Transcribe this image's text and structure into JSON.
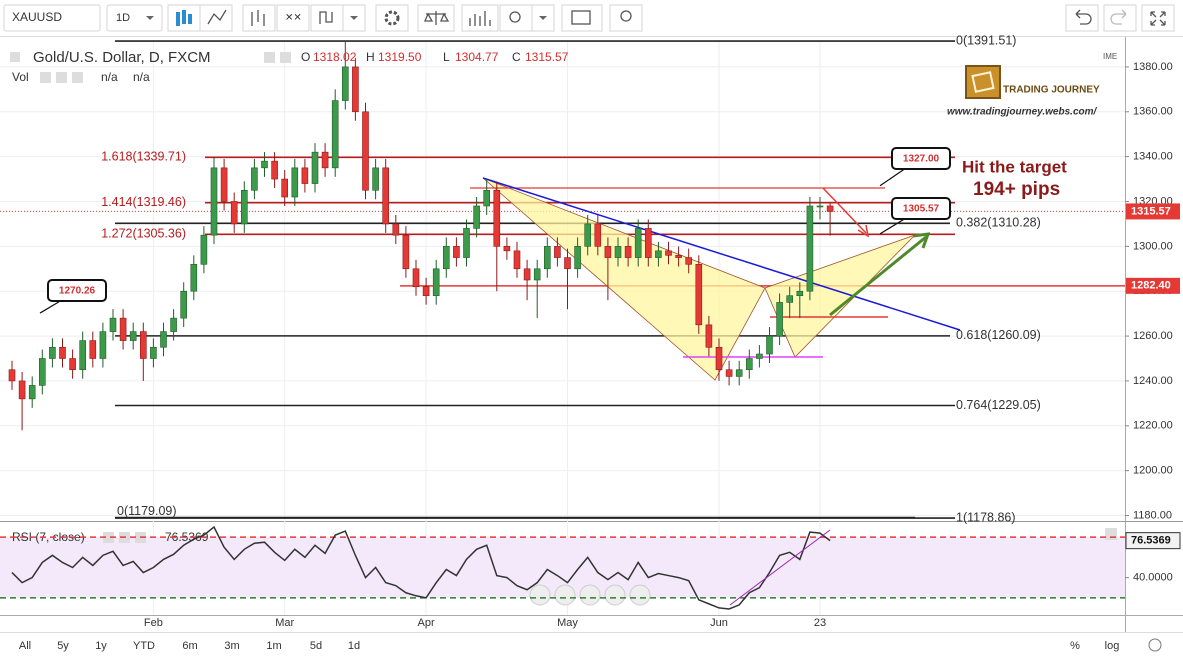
{
  "toolbar": {
    "symbol": "XAUUSD",
    "interval": "1D"
  },
  "legend": {
    "title": "Gold/U.S. Dollar, D, FXCM",
    "o": "O",
    "h": "H",
    "l": "L",
    "c": "C",
    "vol": "Vol",
    "vol_values": [
      "n/a",
      "n/a"
    ]
  },
  "annotations": {
    "line1": "Hit the target",
    "line2": "194+ pips"
  },
  "watermark": {
    "brand": "TRADING JOURNEY",
    "url": "www.tradingjourney.webs.com/",
    "ime": "IME"
  },
  "range_buttons": [
    "All",
    "5y",
    "1y",
    "YTD",
    "6m",
    "3m",
    "1m",
    "5d",
    "1d"
  ],
  "right_buttons": [
    "%",
    "log"
  ],
  "chart_data": {
    "type": "candlestick",
    "ylim": [
      1178,
      1392
    ],
    "yticks": [
      {
        "value": 1180,
        "label": "1180.00"
      },
      {
        "value": 1200,
        "label": "1200.00"
      },
      {
        "value": 1220,
        "label": "1220.00"
      },
      {
        "value": 1240,
        "label": "1240.00"
      },
      {
        "value": 1260,
        "label": "1260.00"
      },
      {
        "value": 1280,
        "label": "1280.00"
      },
      {
        "value": 1300,
        "label": "1300.00"
      },
      {
        "value": 1320,
        "label": "1320.00"
      },
      {
        "value": 1340,
        "label": "1340.00"
      },
      {
        "value": 1360,
        "label": "1360.00"
      },
      {
        "value": 1380,
        "label": "1380.00"
      }
    ],
    "grid": true,
    "up_color": "#3d9a4b",
    "down_color": "#e53935",
    "categories": [
      null,
      null,
      null,
      null,
      null,
      null,
      null,
      null,
      null,
      null,
      null,
      null,
      null,
      null,
      "Feb",
      null,
      null,
      null,
      null,
      null,
      null,
      null,
      null,
      null,
      null,
      null,
      null,
      "Mar",
      null,
      null,
      null,
      null,
      null,
      null,
      null,
      null,
      null,
      null,
      null,
      null,
      null,
      "Apr",
      null,
      null,
      null,
      null,
      null,
      null,
      null,
      null,
      null,
      null,
      null,
      null,
      null,
      "May",
      null,
      null,
      null,
      null,
      null,
      null,
      null,
      null,
      null,
      null,
      null,
      null,
      null,
      null,
      "Jun",
      null,
      null,
      null,
      null,
      null,
      null,
      null,
      null,
      null,
      "23",
      null
    ],
    "open": [
      1245,
      1240,
      1232,
      1238,
      1250,
      1255,
      1250,
      1245,
      1258,
      1250,
      1262,
      1268,
      1258,
      1262,
      1250,
      1255,
      1262,
      1268,
      1280,
      1292,
      1305,
      1335,
      1320,
      1310,
      1325,
      1335,
      1338,
      1330,
      1322,
      1335,
      1328,
      1342,
      1335,
      1365,
      1380,
      1360,
      1325,
      1335,
      1310,
      1305,
      1290,
      1282,
      1278,
      1290,
      1300,
      1295,
      1308,
      1318,
      1325,
      1300,
      1298,
      1290,
      1285,
      1290,
      1300,
      1295,
      1290,
      1300,
      1310,
      1300,
      1295,
      1300,
      1295,
      1308,
      1295,
      1298,
      1296,
      1295,
      1292,
      1265,
      1255,
      1245,
      1242,
      1245,
      1250,
      1252,
      1260,
      1275,
      1278,
      1280,
      1318,
      1318.02
    ],
    "high": [
      1249,
      1244,
      1242,
      1254,
      1259,
      1259,
      1254,
      1262,
      1262,
      1266,
      1272,
      1272,
      1266,
      1266,
      1259,
      1266,
      1272,
      1284,
      1296,
      1309,
      1340,
      1339,
      1324,
      1329,
      1339,
      1342,
      1342,
      1334,
      1339,
      1339,
      1346,
      1346,
      1370,
      1391.5,
      1384,
      1364,
      1339,
      1339,
      1314,
      1309,
      1294,
      1286,
      1294,
      1304,
      1304,
      1312,
      1322,
      1330,
      1329,
      1304,
      1302,
      1294,
      1294,
      1304,
      1304,
      1299,
      1304,
      1314,
      1314,
      1304,
      1304,
      1304,
      1312,
      1312,
      1302,
      1302,
      1300,
      1299,
      1296,
      1269,
      1259,
      1249,
      1249,
      1254,
      1256,
      1264,
      1279,
      1282,
      1284,
      1322,
      1322,
      1319.5
    ],
    "low": [
      1236,
      1218,
      1228,
      1234,
      1246,
      1246,
      1241,
      1241,
      1246,
      1246,
      1258,
      1254,
      1254,
      1240,
      1246,
      1251,
      1258,
      1264,
      1276,
      1288,
      1301,
      1316,
      1306,
      1306,
      1321,
      1331,
      1326,
      1318,
      1318,
      1324,
      1324,
      1331,
      1331,
      1361,
      1356,
      1321,
      1321,
      1306,
      1301,
      1286,
      1278,
      1274,
      1274,
      1286,
      1291,
      1291,
      1304,
      1314,
      1280,
      1294,
      1286,
      1276,
      1268,
      1286,
      1291,
      1272,
      1286,
      1296,
      1296,
      1276,
      1291,
      1291,
      1291,
      1291,
      1291,
      1292,
      1291,
      1288,
      1261,
      1251,
      1240,
      1238,
      1238,
      1241,
      1246,
      1248,
      1256,
      1268,
      1268,
      1276,
      1312,
      1304.77
    ],
    "close": [
      1240,
      1232,
      1238,
      1250,
      1255,
      1250,
      1245,
      1258,
      1250,
      1262,
      1268,
      1258,
      1262,
      1250,
      1255,
      1262,
      1268,
      1280,
      1292,
      1305,
      1335,
      1320,
      1310,
      1325,
      1335,
      1338,
      1330,
      1322,
      1335,
      1328,
      1342,
      1335,
      1365,
      1380,
      1360,
      1325,
      1335,
      1310,
      1305,
      1290,
      1282,
      1278,
      1290,
      1300,
      1295,
      1308,
      1318,
      1325,
      1300,
      1298,
      1290,
      1285,
      1290,
      1300,
      1295,
      1290,
      1300,
      1310,
      1300,
      1295,
      1300,
      1295,
      1308,
      1295,
      1298,
      1296,
      1295,
      1292,
      1265,
      1255,
      1245,
      1242,
      1245,
      1250,
      1252,
      1260,
      1275,
      1278,
      1280,
      1318,
      1318,
      1315.57
    ],
    "ohlc_labels": {
      "open": "1318.02",
      "high": "1319.50",
      "low": "1304.77",
      "close": "1315.57"
    },
    "levels": [
      {
        "label": "0(1391.51)",
        "value": 1391.51,
        "color": "#222222"
      },
      {
        "label": "1.618(1339.71)",
        "value": 1339.71,
        "color": "#b71c1c"
      },
      {
        "label": "1.414(1319.46)",
        "value": 1319.46,
        "color": "#b71c1c"
      },
      {
        "label": "1.272(1305.36)",
        "value": 1305.36,
        "color": "#b71c1c"
      },
      {
        "label": "0.382(1310.28)",
        "value": 1310.28,
        "color": "#222222"
      },
      {
        "label": "0.618(1260.09)",
        "value": 1260.09,
        "color": "#222222"
      },
      {
        "label": "0.764(1229.05)",
        "value": 1229.05,
        "color": "#222222"
      },
      {
        "label": "0(1179.09)",
        "value": 1179.09,
        "color": "#222222"
      },
      {
        "label": "1(1178.86)",
        "value": 1178.86,
        "color": "#222222"
      }
    ],
    "support": {
      "value": 1282.4,
      "label": "1282.40",
      "color": "#e53935"
    },
    "callouts": [
      {
        "label": "1270.26",
        "value": 1270.26
      },
      {
        "label": "1327.00",
        "value": 1327
      },
      {
        "label": "1305.57",
        "value": 1305.57
      }
    ],
    "rsi": {
      "title": "RSI (7, close)",
      "ylim": [
        3,
        94
      ],
      "yticks": [
        {
          "value": 40,
          "label": "40.0000"
        }
      ],
      "upper": 80,
      "lower": 20,
      "color": "#333333",
      "values": [
        45,
        35,
        40,
        55,
        62,
        55,
        50,
        60,
        52,
        62,
        66,
        52,
        56,
        45,
        50,
        58,
        63,
        72,
        78,
        82,
        90,
        70,
        58,
        68,
        74,
        75,
        65,
        57,
        68,
        60,
        72,
        64,
        82,
        86,
        62,
        40,
        50,
        35,
        32,
        25,
        22,
        20,
        35,
        48,
        42,
        58,
        68,
        72,
        42,
        40,
        32,
        28,
        35,
        48,
        42,
        35,
        48,
        60,
        45,
        38,
        45,
        38,
        55,
        40,
        44,
        42,
        40,
        37,
        18,
        14,
        10,
        9,
        13,
        25,
        30,
        45,
        62,
        65,
        58,
        85,
        84,
        76.5369
      ]
    }
  }
}
